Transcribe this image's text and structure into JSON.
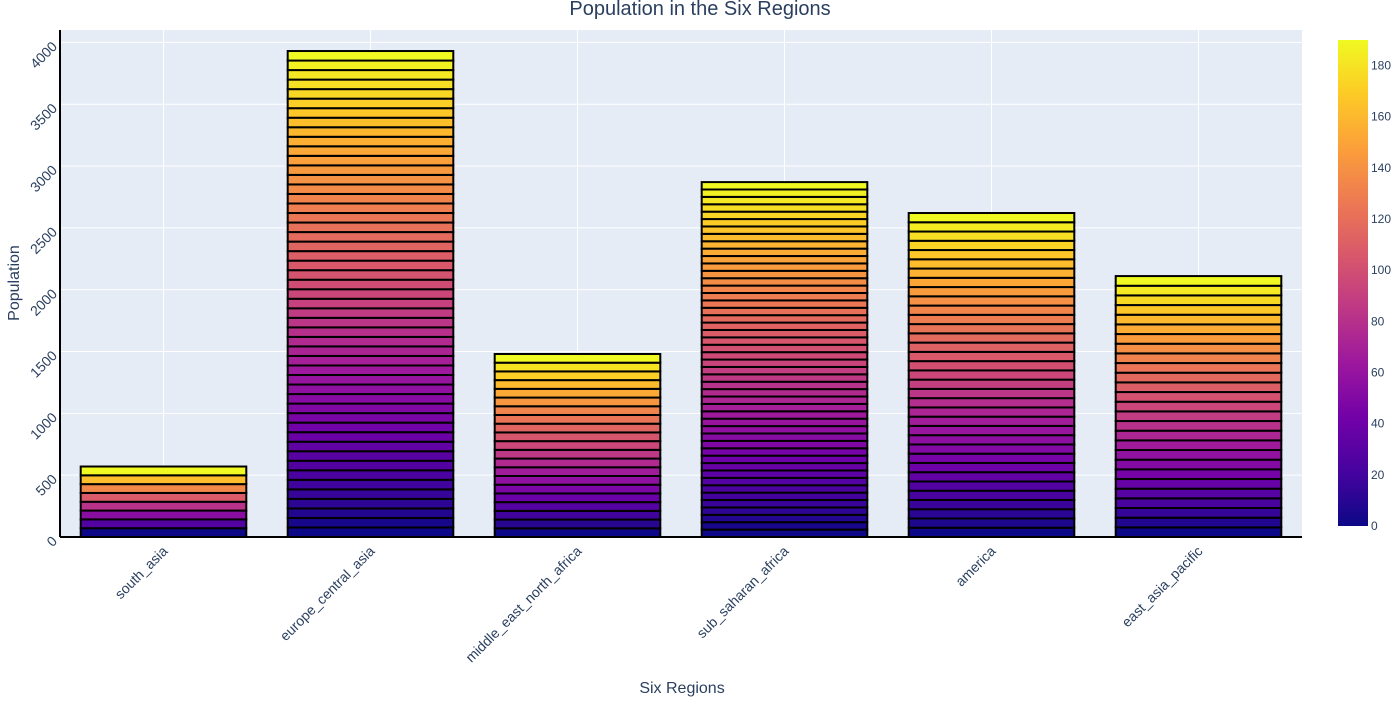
{
  "chart_data": {
    "type": "bar",
    "title": "Population in the Six Regions",
    "xlabel": "Six Regions",
    "ylabel": "Population",
    "categories": [
      "south_asia",
      "europe_central_asia",
      "middle_east_north_africa",
      "sub_saharan_africa",
      "america",
      "east_asia_pacific"
    ],
    "values": [
      570,
      3930,
      1480,
      2870,
      2620,
      2110
    ],
    "segments_per_bar": [
      8,
      51,
      21,
      48,
      35,
      27
    ],
    "ylim": [
      0,
      4100
    ],
    "yticks": [
      0,
      500,
      1000,
      1500,
      2000,
      2500,
      3000,
      3500,
      4000
    ],
    "grid": true,
    "colorbar": {
      "range": [
        0,
        190
      ],
      "ticks": [
        0,
        20,
        40,
        60,
        80,
        100,
        120,
        140,
        160,
        180
      ],
      "colorscale": "plasma"
    },
    "colors": {
      "plot_bg": "#e5ecf6",
      "grid": "#ffffff",
      "text": "#2a3f5f",
      "bar_outline": "#000000"
    }
  }
}
